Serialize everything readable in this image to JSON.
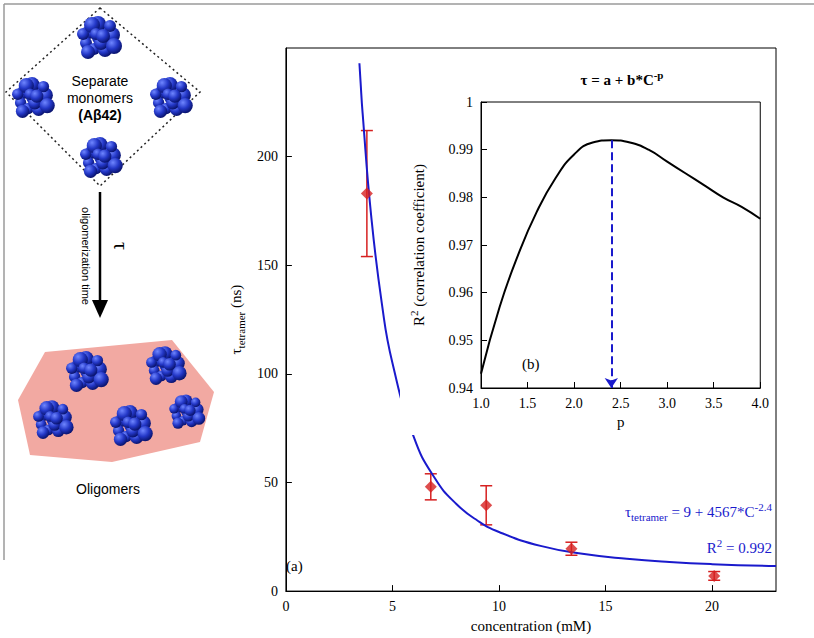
{
  "diagram": {
    "monomers": {
      "label": [
        "Separate",
        "monomers",
        "(Aβ42)"
      ]
    },
    "arrow": {
      "symbol": "τ",
      "label": "oligomerization time"
    },
    "oligomers": {
      "label": "Oligomers"
    }
  },
  "chart_data": [
    {
      "type": "scatter",
      "panel_label": "(a)",
      "x_label": "concentration (mM)",
      "y_label": [
        {
          "text": "τ"
        },
        {
          "text": "tetramer",
          "sub": true
        },
        {
          "text": " (ns)"
        }
      ],
      "xlim": [
        0,
        23
      ],
      "xticks": [
        0,
        5,
        10,
        15,
        20
      ],
      "ylim": [
        0,
        250
      ],
      "yticks": [
        0,
        50,
        100,
        150,
        200
      ],
      "grid": false,
      "series": [
        {
          "type": "scatter",
          "marker": "diamond",
          "color": "#d62020",
          "x": [
            3.8,
            6.8,
            9.4,
            13.4,
            20.1
          ],
          "values": [
            183,
            48,
            39.5,
            19.5,
            7
          ],
          "errors": [
            29,
            6,
            9,
            3,
            2
          ]
        },
        {
          "type": "line",
          "line_style": "solid",
          "color": "#1a1acc",
          "x": [
            3.45,
            3.5,
            3.6,
            4,
            4.5,
            5,
            6,
            7,
            8,
            9,
            10,
            12,
            14,
            16,
            18,
            20,
            23
          ],
          "values": [
            243,
            235,
            220,
            173,
            132.6,
            105,
            71,
            51.8,
            40.1,
            32.4,
            27.2,
            20.7,
            17.1,
            14.9,
            13.4,
            12.4,
            11.5
          ]
        }
      ],
      "annotations": [
        {
          "segments": [
            {
              "text": "τ"
            },
            {
              "text": "tetramer",
              "sub": true
            },
            {
              "text": " = 9 + 4567*C"
            },
            {
              "text": "-2.4",
              "sup": true
            }
          ],
          "color": "#1a1acc"
        },
        {
          "segments": [
            {
              "text": "R"
            },
            {
              "text": "2",
              "sup": true
            },
            {
              "text": " = 0.992"
            }
          ],
          "color": "#1a1acc"
        }
      ]
    },
    {
      "type": "line",
      "panel_label": "(b)",
      "title": [
        {
          "text": "τ = a + b*C"
        },
        {
          "text": "-p",
          "sup": true
        }
      ],
      "x_label": "p",
      "y_label": [
        {
          "text": "R"
        },
        {
          "text": "2",
          "sup": true
        },
        {
          "text": " (correlation coefficient)"
        }
      ],
      "xlim": [
        1,
        4
      ],
      "xticks": [
        {
          "value": 1,
          "label": "1.0"
        },
        1.5,
        {
          "value": 2,
          "label": "2.0"
        },
        2.5,
        {
          "value": 3,
          "label": "3.0"
        },
        3.5,
        {
          "value": 4,
          "label": "4.0"
        }
      ],
      "ylim": [
        0.94,
        1
      ],
      "yticks": [
        0.94,
        0.95,
        0.96,
        0.97,
        0.98,
        0.99,
        1
      ],
      "grid": false,
      "series": [
        {
          "type": "line",
          "line_style": "solid",
          "color": "#000000",
          "x": [
            1.0,
            1.2,
            1.4,
            1.6,
            1.8,
            2.0,
            2.2,
            2.4,
            2.6,
            2.8,
            3.0,
            3.2,
            3.4,
            3.6,
            3.8,
            4.0
          ],
          "values": [
            0.943,
            0.957,
            0.968,
            0.977,
            0.984,
            0.989,
            0.9915,
            0.992,
            0.9915,
            0.99,
            0.9875,
            0.985,
            0.9825,
            0.98,
            0.978,
            0.9755
          ]
        }
      ],
      "peak": {
        "x": 2.4,
        "y": 0.992,
        "color": "#1a1acc",
        "line_style": "dashed"
      }
    }
  ]
}
